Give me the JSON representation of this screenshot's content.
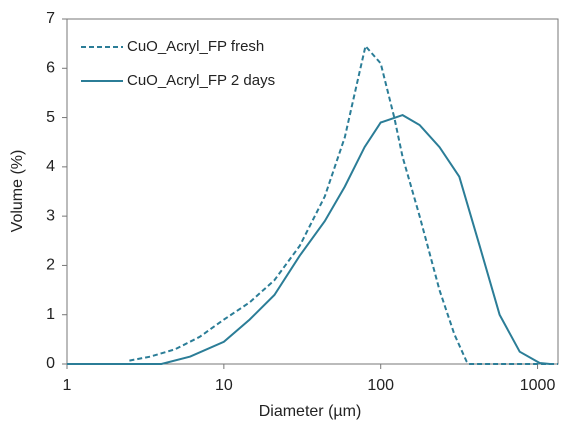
{
  "chart_data": {
    "type": "line",
    "x_label": "Diameter (µm)",
    "y_label": "Volume (%)",
    "xscale": "log",
    "xlim": [
      1,
      1350
    ],
    "xticks": [
      1,
      10,
      100,
      1000
    ],
    "ylim": [
      0,
      7
    ],
    "yticks": [
      0,
      1,
      2,
      3,
      4,
      5,
      6,
      7
    ],
    "legend": "upper left",
    "series": [
      {
        "name": "CuO_Acryl_FP fresh",
        "color": "#2b7d97",
        "line_style": "dashed",
        "x": [
          2.5,
          3.4,
          4.9,
          7,
          10,
          14.6,
          21,
          30.5,
          44,
          59,
          73,
          80,
          100,
          122,
          138,
          177,
          237,
          295,
          353,
          365,
          1350
        ],
        "values": [
          0.07,
          0.15,
          0.3,
          0.55,
          0.9,
          1.25,
          1.7,
          2.4,
          3.4,
          4.6,
          5.9,
          6.45,
          6.1,
          5.0,
          4.2,
          3.0,
          1.5,
          0.6,
          0.05,
          0,
          0
        ]
      },
      {
        "name": "CuO_Acryl_FP 2 days",
        "color": "#2b7d97",
        "line_style": "solid",
        "x": [
          1,
          4,
          6.1,
          10,
          14.6,
          21,
          30.5,
          44,
          59,
          79,
          100,
          138,
          177,
          237,
          317,
          427,
          573,
          769,
          1032,
          1200
        ],
        "values": [
          0,
          0,
          0.15,
          0.45,
          0.9,
          1.4,
          2.2,
          2.9,
          3.6,
          4.4,
          4.9,
          5.05,
          4.85,
          4.4,
          3.8,
          2.4,
          1.0,
          0.25,
          0.02,
          0
        ]
      }
    ]
  }
}
